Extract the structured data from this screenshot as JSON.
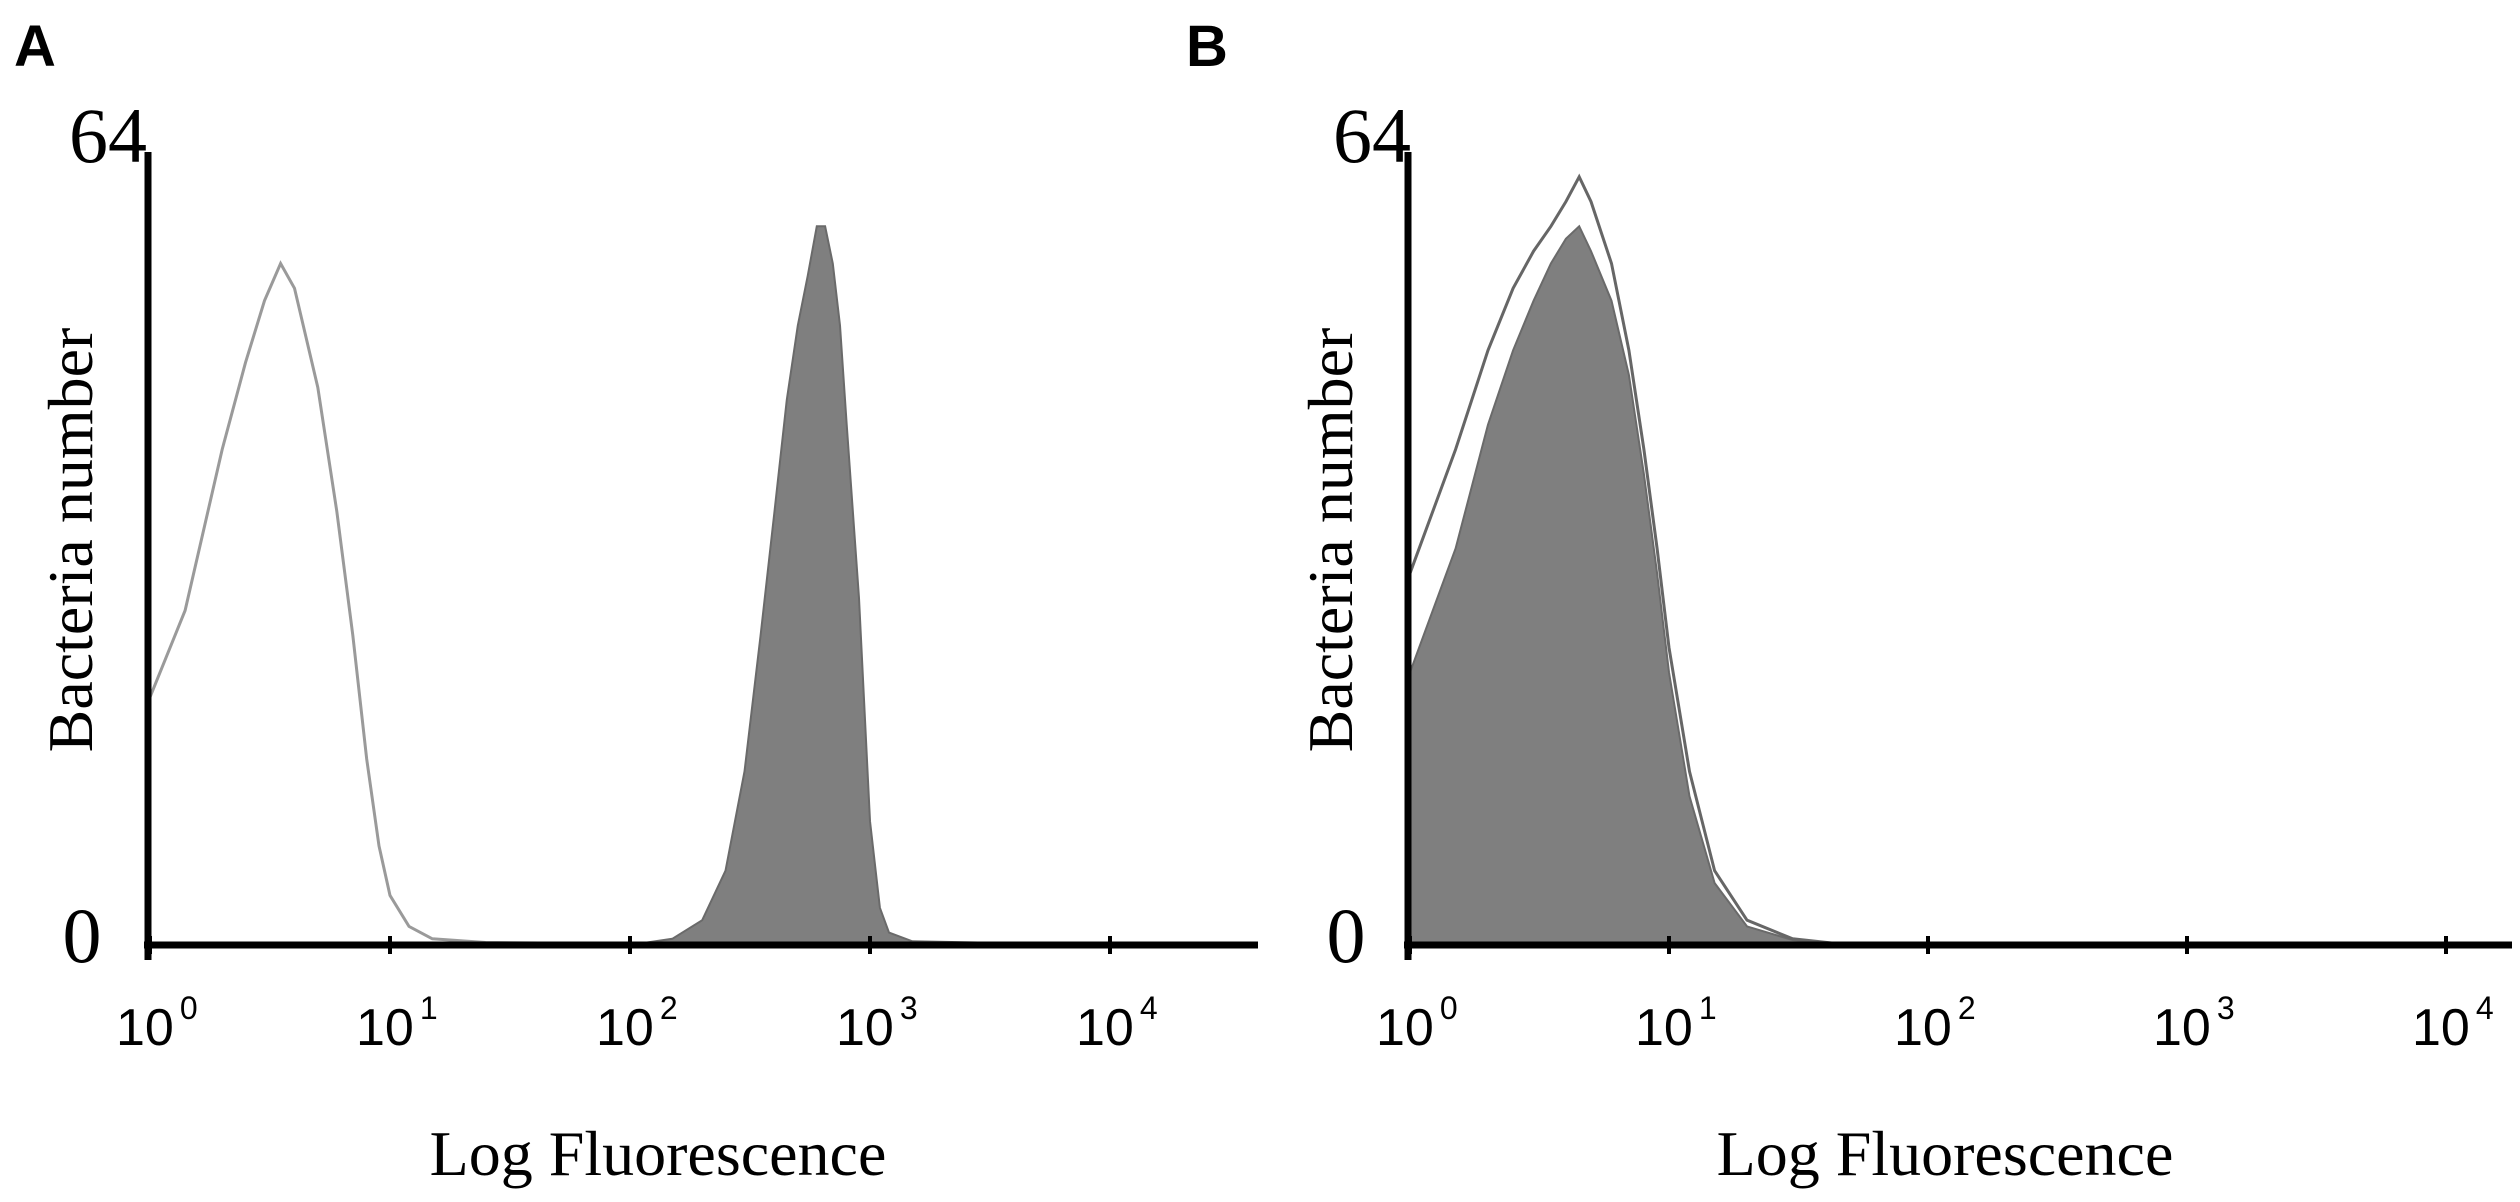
{
  "chart_data": [
    {
      "panel_label": "A",
      "type": "area",
      "xscale": "log",
      "xlim": [
        1,
        30000
      ],
      "ylim": [
        0,
        64
      ],
      "ylabel": "Bacteria number",
      "xlabel": "Log Fluorescence",
      "y_ticks": [
        "0",
        "64"
      ],
      "x_ticks": [
        {
          "value": 1,
          "base": "10",
          "exp": "0"
        },
        {
          "value": 10,
          "base": "10",
          "exp": "1"
        },
        {
          "value": 100,
          "base": "10",
          "exp": "2"
        },
        {
          "value": 1000,
          "base": "10",
          "exp": "3"
        },
        {
          "value": 10000,
          "base": "10",
          "exp": "4"
        }
      ],
      "series": [
        {
          "style": "outline",
          "color": "#9a9a9a",
          "points": [
            [
              1,
              20
            ],
            [
              1.4,
              27
            ],
            [
              2,
              40
            ],
            [
              2.5,
              47
            ],
            [
              3,
              52
            ],
            [
              3.5,
              55
            ],
            [
              4,
              53
            ],
            [
              5,
              45
            ],
            [
              6,
              35
            ],
            [
              7,
              25
            ],
            [
              8,
              15
            ],
            [
              9,
              8
            ],
            [
              10,
              4
            ],
            [
              12,
              1.5
            ],
            [
              15,
              0.5
            ],
            [
              25,
              0.2
            ],
            [
              100,
              0.1
            ]
          ]
        },
        {
          "style": "filled",
          "color": "#7f7f7f",
          "points": [
            [
              100,
              0
            ],
            [
              150,
              0.5
            ],
            [
              200,
              2
            ],
            [
              250,
              6
            ],
            [
              300,
              14
            ],
            [
              350,
              25
            ],
            [
              400,
              35
            ],
            [
              450,
              44
            ],
            [
              500,
              50
            ],
            [
              550,
              54
            ],
            [
              600,
              58
            ],
            [
              650,
              58
            ],
            [
              700,
              55
            ],
            [
              750,
              50
            ],
            [
              800,
              42
            ],
            [
              900,
              28
            ],
            [
              1000,
              10
            ],
            [
              1100,
              3
            ],
            [
              1200,
              1
            ],
            [
              1500,
              0.3
            ],
            [
              10000,
              0
            ]
          ]
        }
      ]
    },
    {
      "panel_label": "B",
      "type": "area",
      "xscale": "log",
      "xlim": [
        1,
        30000
      ],
      "ylim": [
        0,
        64
      ],
      "ylabel": "Bacteria number",
      "xlabel": "Log Fluorescence",
      "y_ticks": [
        "0",
        "64"
      ],
      "x_ticks": [
        {
          "value": 1,
          "base": "10",
          "exp": "0"
        },
        {
          "value": 10,
          "base": "10",
          "exp": "1"
        },
        {
          "value": 100,
          "base": "10",
          "exp": "2"
        },
        {
          "value": 1000,
          "base": "10",
          "exp": "3"
        },
        {
          "value": 10000,
          "base": "10",
          "exp": "4"
        }
      ],
      "series": [
        {
          "style": "outline",
          "color": "#666666",
          "points": [
            [
              1,
              30
            ],
            [
              1.5,
              40
            ],
            [
              2,
              48
            ],
            [
              2.5,
              53
            ],
            [
              3,
              56
            ],
            [
              3.5,
              58
            ],
            [
              4,
              60
            ],
            [
              4.5,
              62
            ],
            [
              5,
              60
            ],
            [
              6,
              55
            ],
            [
              7,
              48
            ],
            [
              8,
              40
            ],
            [
              9,
              32
            ],
            [
              10,
              24
            ],
            [
              12,
              14
            ],
            [
              15,
              6
            ],
            [
              20,
              2
            ],
            [
              30,
              0.5
            ],
            [
              50,
              0
            ]
          ]
        },
        {
          "style": "filled",
          "color": "#7f7f7f",
          "points": [
            [
              1,
              22
            ],
            [
              1.5,
              32
            ],
            [
              2,
              42
            ],
            [
              2.5,
              48
            ],
            [
              3,
              52
            ],
            [
              3.5,
              55
            ],
            [
              4,
              57
            ],
            [
              4.5,
              58
            ],
            [
              5,
              56
            ],
            [
              6,
              52
            ],
            [
              7,
              46
            ],
            [
              8,
              38
            ],
            [
              9,
              30
            ],
            [
              10,
              22
            ],
            [
              12,
              12
            ],
            [
              15,
              5
            ],
            [
              20,
              1.5
            ],
            [
              30,
              0.4
            ],
            [
              50,
              0
            ]
          ]
        }
      ]
    }
  ]
}
